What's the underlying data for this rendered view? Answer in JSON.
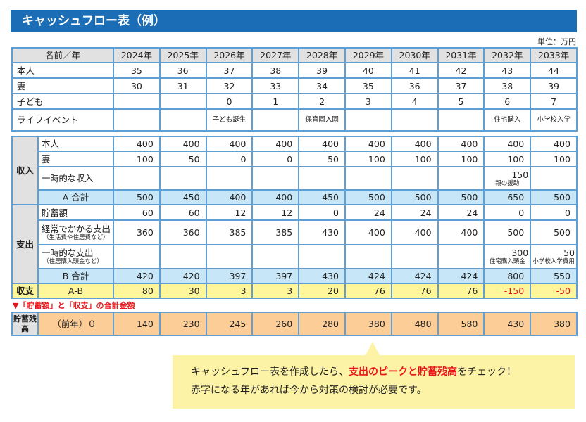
{
  "title": "キャッシュフロー表（例）",
  "unit": "単位：万円",
  "years": [
    "2024年",
    "2025年",
    "2026年",
    "2027年",
    "2028年",
    "2029年",
    "2030年",
    "2031年",
    "2032年",
    "2033年"
  ],
  "profile": {
    "header": "名前／年",
    "rows": [
      {
        "label": "本人",
        "values": [
          "35",
          "36",
          "37",
          "38",
          "39",
          "40",
          "41",
          "42",
          "43",
          "44"
        ]
      },
      {
        "label": "妻",
        "values": [
          "30",
          "31",
          "32",
          "33",
          "34",
          "35",
          "36",
          "37",
          "38",
          "39"
        ]
      },
      {
        "label": "子ども",
        "values": [
          "",
          "",
          "0",
          "1",
          "2",
          "3",
          "4",
          "5",
          "6",
          "7"
        ]
      },
      {
        "label": "ライフイベント",
        "values": [
          "",
          "",
          "子ども誕生",
          "",
          "保育園入園",
          "",
          "",
          "",
          "住宅購入",
          "小学校入学"
        ]
      }
    ]
  },
  "income": {
    "label": "収入",
    "rows": [
      {
        "label": "本人",
        "values": [
          "400",
          "400",
          "400",
          "400",
          "400",
          "400",
          "400",
          "400",
          "400",
          "400"
        ]
      },
      {
        "label": "妻",
        "values": [
          "100",
          "50",
          "0",
          "0",
          "50",
          "100",
          "100",
          "100",
          "100",
          "100"
        ]
      },
      {
        "label": "一時的な収入",
        "values": [
          "",
          "",
          "",
          "",
          "",
          "",
          "",
          "",
          "150",
          ""
        ],
        "notes": [
          "",
          "",
          "",
          "",
          "",
          "",
          "",
          "",
          "親の援助",
          ""
        ]
      }
    ],
    "total": {
      "label": "A 合計",
      "values": [
        "500",
        "450",
        "400",
        "400",
        "450",
        "500",
        "500",
        "500",
        "650",
        "500"
      ]
    }
  },
  "expense": {
    "label": "支出",
    "rows": [
      {
        "label": "貯蓄額",
        "values": [
          "60",
          "60",
          "12",
          "12",
          "0",
          "24",
          "24",
          "24",
          "0",
          "0"
        ]
      },
      {
        "label": "経常でかかる支出",
        "sublabel": "（生活費や住居費など）",
        "values": [
          "360",
          "360",
          "385",
          "385",
          "430",
          "400",
          "400",
          "400",
          "500",
          "500"
        ]
      },
      {
        "label": "一時的な支出",
        "sublabel": "（住居購入頭金など）",
        "values": [
          "",
          "",
          "",
          "",
          "",
          "",
          "",
          "",
          "300",
          "50"
        ],
        "notes": [
          "",
          "",
          "",
          "",
          "",
          "",
          "",
          "",
          "住宅購入頭金",
          "小学校入学費用"
        ]
      }
    ],
    "total": {
      "label": "B 合計",
      "values": [
        "420",
        "420",
        "397",
        "397",
        "430",
        "424",
        "424",
        "424",
        "800",
        "550"
      ]
    }
  },
  "balance": {
    "label": "収支",
    "formula": "A‐B",
    "values": [
      "80",
      "30",
      "3",
      "3",
      "20",
      "76",
      "76",
      "76",
      "-150",
      "-50"
    ]
  },
  "note": "▼「貯蓄額」と「収支」の合計金額",
  "savings": {
    "label": "貯蓄残高",
    "prev": "（前年）０",
    "values": [
      "140",
      "230",
      "245",
      "260",
      "280",
      "380",
      "480",
      "580",
      "430",
      "380"
    ]
  },
  "callout": {
    "line1_a": "キャッシュフロー表を作成したら、",
    "line1_b": "支出のピークと貯蓄残高",
    "line1_c": "をチェック！",
    "line2": "赤字になる年があれば今から対策の検討が必要です。"
  },
  "colors": {
    "title_bar": "#1b6db5",
    "sum_row": "#c7e7f8",
    "balance_row": "#fff59a",
    "savings_row": "#fdcd98",
    "negative": "#e8141b",
    "callout": "#fdf3a6"
  }
}
